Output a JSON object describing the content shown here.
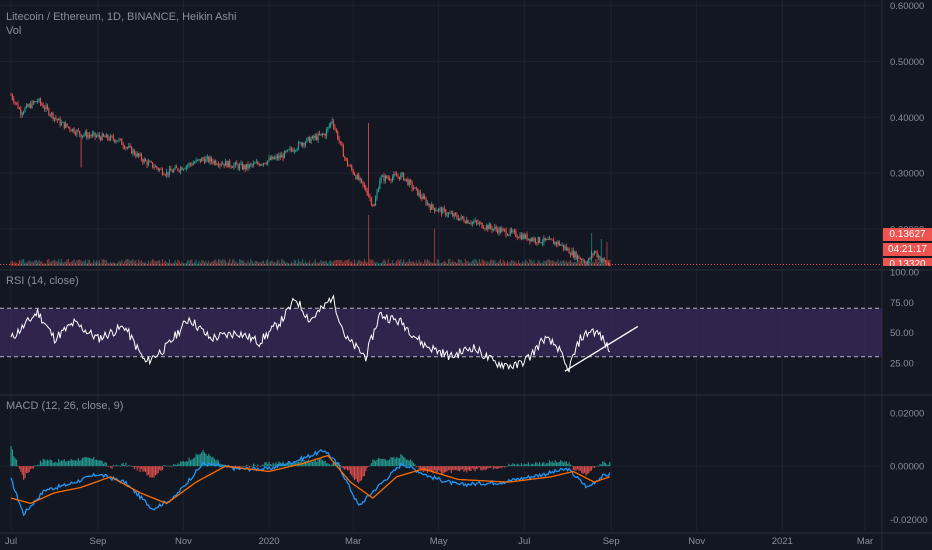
{
  "header": {
    "symbol_line": "Litecoin / Ethereum, 1D, BINANCE, Heikin Ashi",
    "volume_label": "Vol",
    "rsi_label": "RSI (14, close)",
    "macd_label": "MACD (12, 26, close, 9)"
  },
  "price_boxes": {
    "last_price": "0.13627",
    "countdown": "04:21:17",
    "partial": "0.13320"
  },
  "colors": {
    "background": "#131722",
    "grid": "#1f2330",
    "bull": "#26a69a",
    "bear": "#ef5350",
    "rsi_line": "#ffffff",
    "rsi_band": "#3b2a5c",
    "macd_line": "#2196f3",
    "signal_line": "#ff6d00",
    "axis_text": "#8a8f9c",
    "price_line": "#ef5350"
  },
  "chart_data": [
    {
      "type": "candlestick",
      "title": "Litecoin / Ethereum, 1D, BINANCE, Heikin Ashi",
      "xlabel": "",
      "ylabel": "",
      "y_ticks": [
        "0.60000",
        "0.50000",
        "0.40000",
        "0.30000",
        "0.20000"
      ],
      "ylim": [
        0.13,
        0.61
      ],
      "x_ticks": [
        "Jul",
        "Sep",
        "Nov",
        "2020",
        "Mar",
        "May",
        "Jul",
        "Sep",
        "Nov",
        "2021",
        "Mar"
      ],
      "last_price": 0.13627,
      "price_anchors": [
        {
          "date": "2019-07-01",
          "value": 0.44
        },
        {
          "date": "2019-07-08",
          "value": 0.41
        },
        {
          "date": "2019-07-20",
          "value": 0.43
        },
        {
          "date": "2019-08-05",
          "value": 0.39
        },
        {
          "date": "2019-08-20",
          "value": 0.37
        },
        {
          "date": "2019-09-15",
          "value": 0.36
        },
        {
          "date": "2019-10-05",
          "value": 0.32
        },
        {
          "date": "2019-10-20",
          "value": 0.3
        },
        {
          "date": "2019-11-15",
          "value": 0.325
        },
        {
          "date": "2019-12-15",
          "value": 0.31
        },
        {
          "date": "2020-01-10",
          "value": 0.33
        },
        {
          "date": "2020-01-25",
          "value": 0.355
        },
        {
          "date": "2020-02-10",
          "value": 0.37
        },
        {
          "date": "2020-02-15",
          "value": 0.395
        },
        {
          "date": "2020-02-25",
          "value": 0.32
        },
        {
          "date": "2020-03-10",
          "value": 0.27
        },
        {
          "date": "2020-03-16",
          "value": 0.24
        },
        {
          "date": "2020-03-20",
          "value": 0.29
        },
        {
          "date": "2020-04-05",
          "value": 0.295
        },
        {
          "date": "2020-04-25",
          "value": 0.24
        },
        {
          "date": "2020-05-15",
          "value": 0.22
        },
        {
          "date": "2020-06-10",
          "value": 0.2
        },
        {
          "date": "2020-07-10",
          "value": 0.18
        },
        {
          "date": "2020-07-25",
          "value": 0.175
        },
        {
          "date": "2020-08-05",
          "value": 0.155
        },
        {
          "date": "2020-08-15",
          "value": 0.14
        },
        {
          "date": "2020-08-20",
          "value": 0.16
        },
        {
          "date": "2020-08-25",
          "value": 0.145
        },
        {
          "date": "2020-08-31",
          "value": 0.136
        }
      ]
    },
    {
      "type": "bar",
      "title": "Vol",
      "xlabel": "",
      "ylabel": "",
      "spikes": [
        {
          "date": "2020-03-12",
          "value": 0.85
        },
        {
          "date": "2020-04-28",
          "value": 0.62
        },
        {
          "date": "2020-08-18",
          "value": 0.55
        },
        {
          "date": "2020-08-25",
          "value": 0.45
        },
        {
          "date": "2020-08-29",
          "value": 0.4
        }
      ]
    },
    {
      "type": "line",
      "title": "RSI (14, close)",
      "xlabel": "",
      "ylabel": "",
      "y_ticks": [
        "100.00",
        "75.00",
        "50.00",
        "25.00"
      ],
      "ylim": [
        0,
        100
      ],
      "band": [
        30,
        70
      ],
      "series": [
        {
          "values": [
            {
              "date": "2019-07-01",
              "value": 45
            },
            {
              "date": "2019-07-10",
              "value": 55
            },
            {
              "date": "2019-07-20",
              "value": 67
            },
            {
              "date": "2019-08-01",
              "value": 45
            },
            {
              "date": "2019-08-15",
              "value": 58
            },
            {
              "date": "2019-09-01",
              "value": 45
            },
            {
              "date": "2019-09-20",
              "value": 55
            },
            {
              "date": "2019-10-05",
              "value": 25
            },
            {
              "date": "2019-10-20",
              "value": 38
            },
            {
              "date": "2019-11-05",
              "value": 62
            },
            {
              "date": "2019-11-20",
              "value": 45
            },
            {
              "date": "2019-12-10",
              "value": 50
            },
            {
              "date": "2019-12-25",
              "value": 42
            },
            {
              "date": "2020-01-10",
              "value": 60
            },
            {
              "date": "2020-01-20",
              "value": 78
            },
            {
              "date": "2020-01-30",
              "value": 60
            },
            {
              "date": "2020-02-10",
              "value": 72
            },
            {
              "date": "2020-02-15",
              "value": 80
            },
            {
              "date": "2020-02-25",
              "value": 45
            },
            {
              "date": "2020-03-10",
              "value": 30
            },
            {
              "date": "2020-03-20",
              "value": 65
            },
            {
              "date": "2020-04-05",
              "value": 58
            },
            {
              "date": "2020-04-20",
              "value": 40
            },
            {
              "date": "2020-05-10",
              "value": 30
            },
            {
              "date": "2020-05-25",
              "value": 38
            },
            {
              "date": "2020-06-10",
              "value": 25
            },
            {
              "date": "2020-06-25",
              "value": 22
            },
            {
              "date": "2020-07-05",
              "value": 30
            },
            {
              "date": "2020-07-15",
              "value": 45
            },
            {
              "date": "2020-07-25",
              "value": 38
            },
            {
              "date": "2020-08-01",
              "value": 18
            },
            {
              "date": "2020-08-10",
              "value": 45
            },
            {
              "date": "2020-08-18",
              "value": 52
            },
            {
              "date": "2020-08-24",
              "value": 48
            },
            {
              "date": "2020-08-31",
              "value": 35
            }
          ]
        }
      ],
      "annotations": [
        {
          "type": "trendline",
          "from": {
            "date": "2020-07-30",
            "value": 18
          },
          "to": {
            "date": "2020-09-20",
            "value": 55
          }
        }
      ]
    },
    {
      "type": "line",
      "title": "MACD (12, 26, close, 9)",
      "xlabel": "",
      "ylabel": "",
      "y_ticks": [
        "0.02000",
        "0.00000",
        "-0.02000"
      ],
      "ylim": [
        -0.024,
        0.026
      ],
      "series": [
        {
          "values": [
            {
              "date": "2019-07-01",
              "value": -0.005
            },
            {
              "date": "2019-07-10",
              "value": -0.018
            },
            {
              "date": "2019-07-25",
              "value": -0.009
            },
            {
              "date": "2019-08-10",
              "value": -0.007
            },
            {
              "date": "2019-09-01",
              "value": -0.003
            },
            {
              "date": "2019-09-20",
              "value": -0.006
            },
            {
              "date": "2019-10-10",
              "value": -0.016
            },
            {
              "date": "2019-10-25",
              "value": -0.012
            },
            {
              "date": "2019-11-15",
              "value": 0.001
            },
            {
              "date": "2019-12-10",
              "value": -0.001
            },
            {
              "date": "2020-01-01",
              "value": -0.001
            },
            {
              "date": "2020-01-20",
              "value": 0.002
            },
            {
              "date": "2020-02-10",
              "value": 0.006
            },
            {
              "date": "2020-02-20",
              "value": 0.0
            },
            {
              "date": "2020-03-05",
              "value": -0.015
            },
            {
              "date": "2020-03-18",
              "value": -0.008
            },
            {
              "date": "2020-04-05",
              "value": 0.001
            },
            {
              "date": "2020-04-25",
              "value": -0.004
            },
            {
              "date": "2020-05-15",
              "value": -0.007
            },
            {
              "date": "2020-06-15",
              "value": -0.006
            },
            {
              "date": "2020-07-15",
              "value": -0.003
            },
            {
              "date": "2020-08-01",
              "value": -0.001
            },
            {
              "date": "2020-08-15",
              "value": -0.008
            },
            {
              "date": "2020-08-25",
              "value": -0.004
            },
            {
              "date": "2020-08-31",
              "value": -0.003
            }
          ]
        },
        {
          "values": [
            {
              "date": "2019-07-01",
              "value": -0.012
            },
            {
              "date": "2019-07-15",
              "value": -0.014
            },
            {
              "date": "2019-08-01",
              "value": -0.01
            },
            {
              "date": "2019-08-20",
              "value": -0.008
            },
            {
              "date": "2019-09-10",
              "value": -0.004
            },
            {
              "date": "2019-10-01",
              "value": -0.01
            },
            {
              "date": "2019-10-20",
              "value": -0.014
            },
            {
              "date": "2019-11-10",
              "value": -0.006
            },
            {
              "date": "2019-12-01",
              "value": 0.0
            },
            {
              "date": "2020-01-01",
              "value": -0.002
            },
            {
              "date": "2020-01-25",
              "value": 0.001
            },
            {
              "date": "2020-02-12",
              "value": 0.004
            },
            {
              "date": "2020-02-28",
              "value": -0.006
            },
            {
              "date": "2020-03-15",
              "value": -0.012
            },
            {
              "date": "2020-04-01",
              "value": -0.004
            },
            {
              "date": "2020-04-20",
              "value": -0.001
            },
            {
              "date": "2020-05-15",
              "value": -0.005
            },
            {
              "date": "2020-06-20",
              "value": -0.006
            },
            {
              "date": "2020-07-20",
              "value": -0.004
            },
            {
              "date": "2020-08-05",
              "value": -0.002
            },
            {
              "date": "2020-08-20",
              "value": -0.006
            },
            {
              "date": "2020-08-31",
              "value": -0.004
            }
          ]
        }
      ]
    }
  ]
}
